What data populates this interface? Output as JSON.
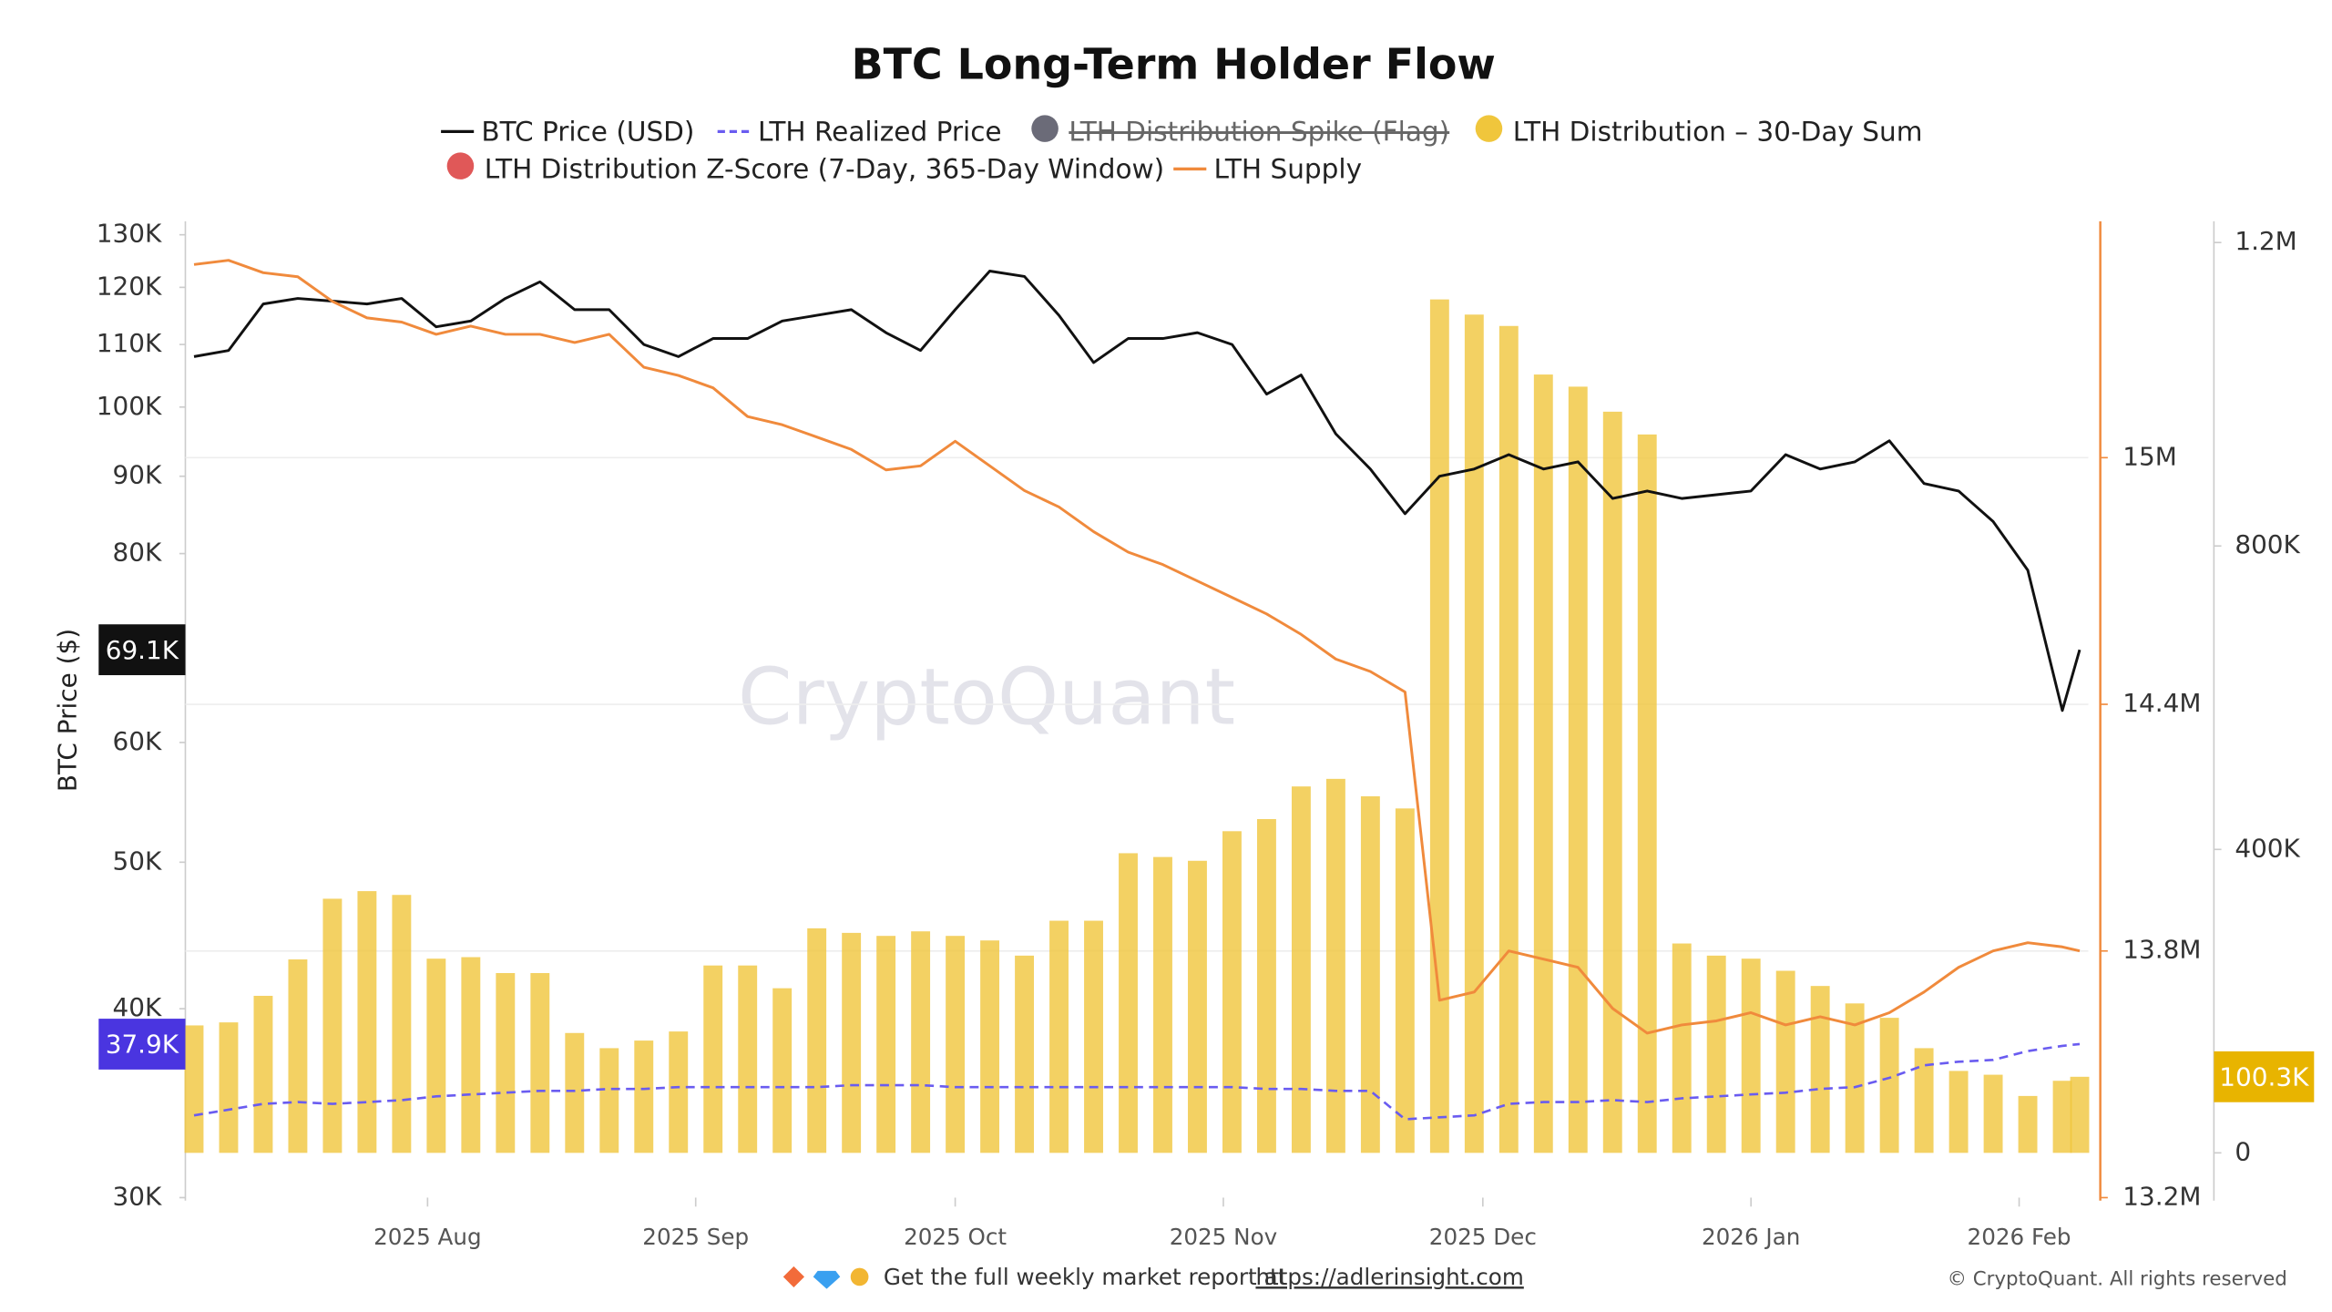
{
  "chart_data": {
    "type": "combo",
    "title": "BTC Long-Term Holder Flow",
    "y_label": "BTC Price ($)",
    "watermark": "CryptoQuant",
    "footer": {
      "text": "Get the full weekly market report at",
      "link": "https://adlerinsight.com",
      "copyright": "© CryptoQuant. All rights reserved"
    },
    "x": [
      "2025-07-05",
      "2025-07-09",
      "2025-07-13",
      "2025-07-17",
      "2025-07-21",
      "2025-07-25",
      "2025-07-29",
      "2025-08-02",
      "2025-08-06",
      "2025-08-10",
      "2025-08-14",
      "2025-08-18",
      "2025-08-22",
      "2025-08-26",
      "2025-08-30",
      "2025-09-03",
      "2025-09-07",
      "2025-09-11",
      "2025-09-15",
      "2025-09-19",
      "2025-09-23",
      "2025-09-27",
      "2025-10-01",
      "2025-10-05",
      "2025-10-09",
      "2025-10-13",
      "2025-10-17",
      "2025-10-21",
      "2025-10-25",
      "2025-10-29",
      "2025-11-02",
      "2025-11-06",
      "2025-11-10",
      "2025-11-14",
      "2025-11-18",
      "2025-11-22",
      "2025-11-26",
      "2025-11-30",
      "2025-12-04",
      "2025-12-08",
      "2025-12-12",
      "2025-12-16",
      "2025-12-20",
      "2025-12-24",
      "2025-12-28",
      "2026-01-01",
      "2026-01-05",
      "2026-01-09",
      "2026-01-13",
      "2026-01-17",
      "2026-01-21",
      "2026-01-25",
      "2026-01-29",
      "2026-02-02",
      "2026-02-06",
      "2026-02-08"
    ],
    "xlim": [
      "2025-07-04",
      "2026-02-09"
    ],
    "xticks": [
      {
        "value": "2025-08-01",
        "label": "2025 Aug"
      },
      {
        "value": "2025-09-01",
        "label": "2025 Sep"
      },
      {
        "value": "2025-10-01",
        "label": "2025 Oct"
      },
      {
        "value": "2025-11-01",
        "label": "2025 Nov"
      },
      {
        "value": "2025-12-01",
        "label": "2025 Dec"
      },
      {
        "value": "2026-01-01",
        "label": "2026 Jan"
      },
      {
        "value": "2026-02-01",
        "label": "2026 Feb"
      }
    ],
    "y_log": true,
    "ylim": [
      30000,
      132700
    ],
    "yticks": [
      {
        "value": 30000,
        "label": "30K"
      },
      {
        "value": 40000,
        "label": "40K"
      },
      {
        "value": 50000,
        "label": "50K"
      },
      {
        "value": 60000,
        "label": "60K"
      },
      {
        "value": 80000,
        "label": "80K"
      },
      {
        "value": 90000,
        "label": "90K"
      },
      {
        "value": 100000,
        "label": "100K"
      },
      {
        "value": 110000,
        "label": "110K"
      },
      {
        "value": 120000,
        "label": "120K"
      },
      {
        "value": 130000,
        "label": "130K"
      }
    ],
    "y2lim": [
      13200000,
      15575000
    ],
    "y2ticks": [
      {
        "value": 13200000,
        "label": "13.2M"
      },
      {
        "value": 13800000,
        "label": "13.8M"
      },
      {
        "value": 14400000,
        "label": "14.4M"
      },
      {
        "value": 15000000,
        "label": "15M"
      }
    ],
    "y3lim": [
      -59000,
      1228000
    ],
    "y3ticks": [
      0,
      {
        "value": 400000,
        "label": "400K"
      },
      {
        "value": 800000,
        "label": "800K"
      },
      {
        "value": 1200000,
        "label": "1.2M"
      }
    ],
    "grid": true,
    "series": [
      {
        "name": "BTC Price (USD)",
        "kind": "line",
        "axis": "y",
        "color": "#111111",
        "last_label": "69.1K",
        "values": [
          108000,
          109000,
          117000,
          118000,
          117500,
          117000,
          118000,
          113000,
          114000,
          118000,
          121000,
          116000,
          116000,
          110000,
          108000,
          111000,
          111000,
          114000,
          115000,
          116000,
          112000,
          109000,
          116000,
          123000,
          122000,
          115000,
          107000,
          111000,
          111000,
          112000,
          110000,
          102000,
          105000,
          96000,
          91000,
          85000,
          90000,
          91000,
          93000,
          91000,
          92000,
          87000,
          88000,
          87000,
          87500,
          88000,
          93000,
          91000,
          92000,
          95000,
          89000,
          88000,
          84000,
          78000,
          63000,
          69100
        ]
      },
      {
        "name": "LTH Realized Price",
        "kind": "dashed",
        "axis": "y",
        "color": "#6a5cf0",
        "last_label": "37.9K",
        "label_color": "#4a35e0",
        "values": [
          34000,
          34300,
          34600,
          34700,
          34600,
          34700,
          34800,
          35000,
          35100,
          35200,
          35300,
          35300,
          35400,
          35400,
          35500,
          35500,
          35500,
          35500,
          35500,
          35600,
          35600,
          35600,
          35500,
          35500,
          35500,
          35500,
          35500,
          35500,
          35500,
          35500,
          35500,
          35400,
          35400,
          35300,
          35300,
          33800,
          33900,
          34000,
          34600,
          34700,
          34700,
          34800,
          34700,
          34900,
          35000,
          35100,
          35200,
          35400,
          35500,
          36000,
          36700,
          36900,
          37000,
          37500,
          37800,
          37900
        ]
      },
      {
        "name": "LTH Distribution Spike (Flag)",
        "kind": "dot",
        "color": "#6b6b78",
        "hidden": true
      },
      {
        "name": "LTH Distribution – 30-Day Sum",
        "kind": "bar",
        "axis": "y3",
        "color": "#f0c63c",
        "last_label": "100.3K",
        "label_color": "#e8b400",
        "values": [
          168000,
          172000,
          207000,
          255000,
          335000,
          345000,
          340000,
          256000,
          258000,
          237000,
          237000,
          158000,
          138000,
          148000,
          160000,
          247000,
          247000,
          217000,
          296000,
          290000,
          286000,
          292000,
          286000,
          280000,
          260000,
          306000,
          306000,
          395000,
          390000,
          385000,
          424000,
          440000,
          483000,
          493000,
          470000,
          454000,
          1125000,
          1105000,
          1090000,
          1026000,
          1010000,
          977000,
          947000,
          276000,
          260000,
          256000,
          240000,
          220000,
          197000,
          178000,
          138000,
          108000,
          103000,
          75000,
          95000,
          100300
        ]
      },
      {
        "name": "LTH Distribution Z-Score (7-Day, 365-Day Window)",
        "kind": "dot",
        "color": "#e05858"
      },
      {
        "name": "LTH Supply",
        "kind": "line",
        "axis": "y2",
        "color": "#f08a3c",
        "values": [
          15470000,
          15480000,
          15450000,
          15440000,
          15380000,
          15340000,
          15330000,
          15300000,
          15320000,
          15300000,
          15300000,
          15280000,
          15300000,
          15220000,
          15200000,
          15170000,
          15100000,
          15080000,
          15050000,
          15020000,
          14970000,
          14980000,
          15040000,
          14980000,
          14920000,
          14880000,
          14820000,
          14770000,
          14740000,
          14700000,
          14660000,
          14620000,
          14570000,
          14510000,
          14480000,
          14430000,
          13680000,
          13700000,
          13800000,
          13780000,
          13760000,
          13660000,
          13600000,
          13620000,
          13630000,
          13650000,
          13620000,
          13640000,
          13620000,
          13650000,
          13700000,
          13760000,
          13800000,
          13820000,
          13810000,
          13800000
        ]
      }
    ]
  }
}
